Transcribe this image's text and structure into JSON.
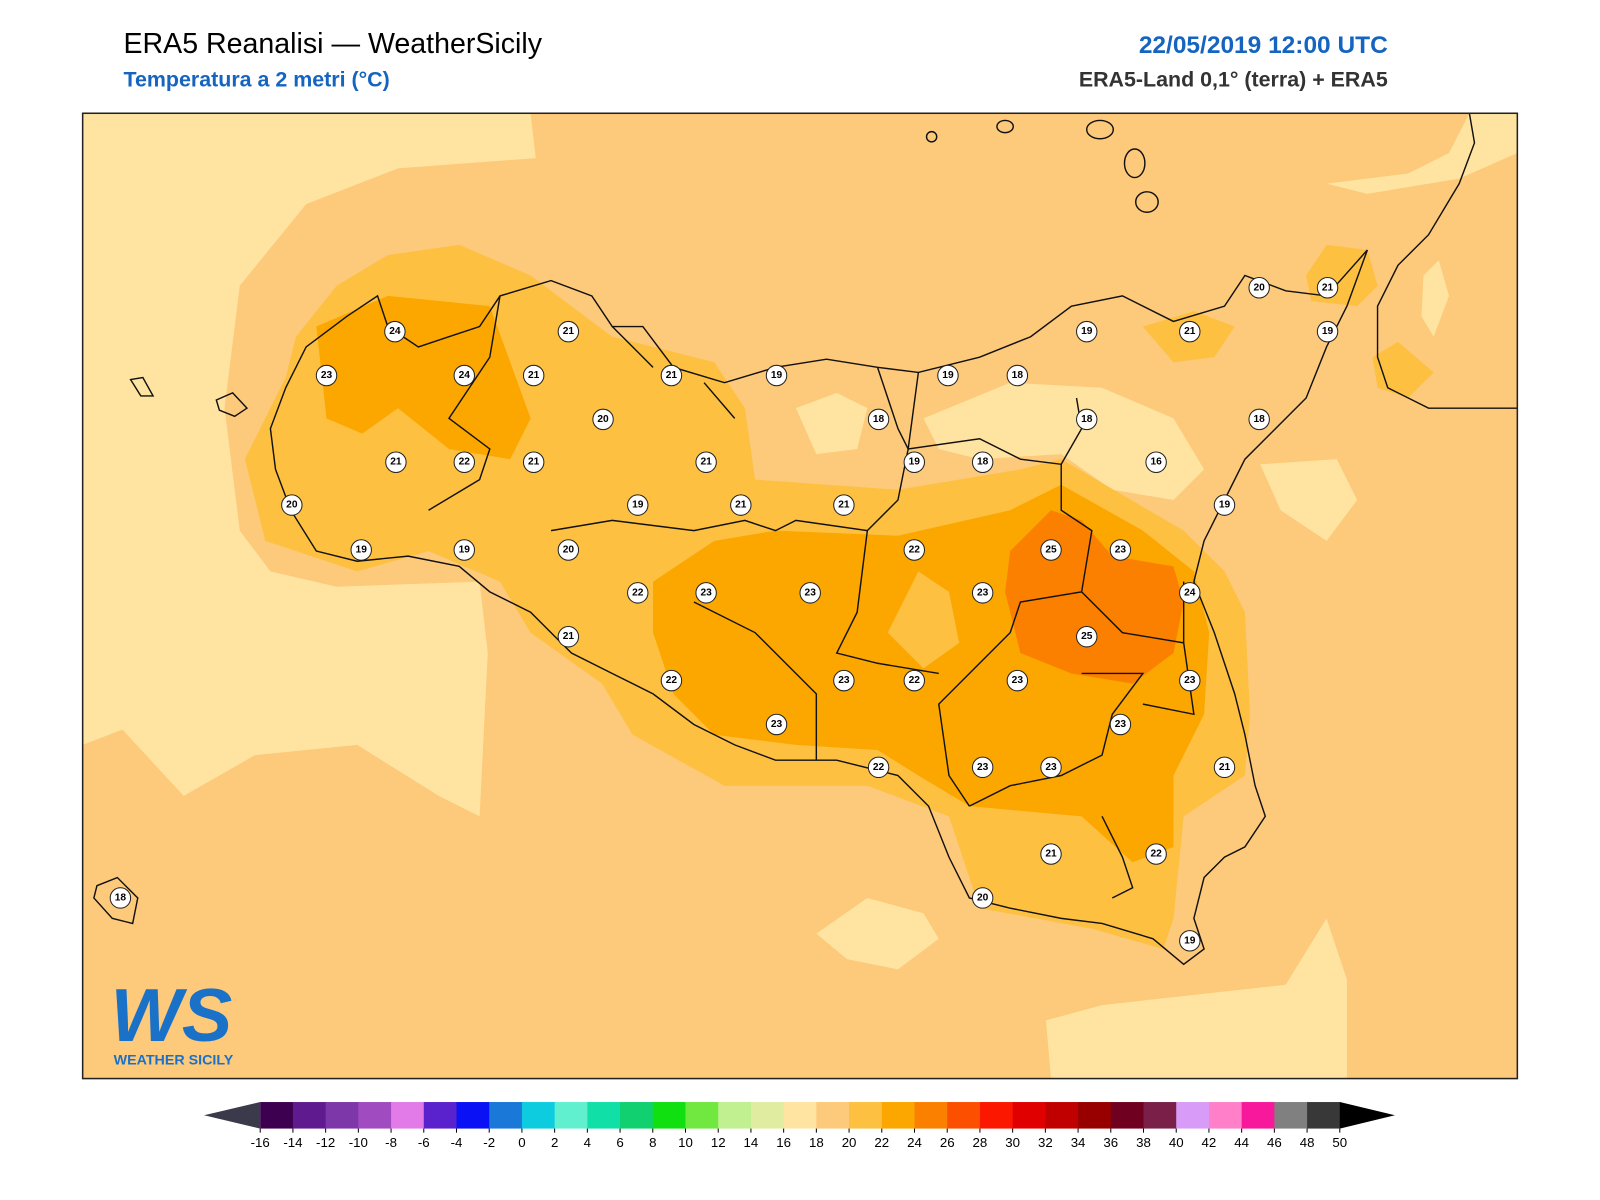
{
  "header": {
    "title": "ERA5 Reanalisi — WeatherSicily",
    "subtitle": "Temperatura a 2 metri (°C)",
    "date": "22/05/2019 12:00 UTC",
    "source": "ERA5-Land 0,1° (terra) + ERA5"
  },
  "stations": [
    24,
    23,
    24,
    21,
    21,
    20,
    21,
    21,
    22,
    21,
    21,
    20,
    19,
    19,
    20,
    19,
    21,
    21,
    19,
    18,
    19,
    18,
    19,
    18,
    19,
    18,
    16,
    21,
    20,
    21,
    19,
    18,
    19,
    22,
    25,
    23,
    22,
    23,
    23,
    23,
    24,
    21,
    25,
    22,
    23,
    22,
    23,
    23,
    23,
    23,
    22,
    23,
    23,
    21,
    21,
    22,
    20,
    19,
    18
  ],
  "colorbar": {
    "ticks": [
      -16,
      -14,
      -12,
      -10,
      -8,
      -6,
      -4,
      -2,
      0,
      2,
      4,
      6,
      8,
      10,
      12,
      14,
      16,
      18,
      20,
      22,
      24,
      26,
      28,
      30,
      32,
      34,
      36,
      38,
      40,
      42,
      44,
      46,
      48,
      50
    ],
    "colors": [
      "#3d0050",
      "#5e1a8e",
      "#7d37a8",
      "#a04cc0",
      "#e27ae8",
      "#5a22cc",
      "#0a12f5",
      "#1a78d8",
      "#0ecce0",
      "#60f0d0",
      "#10e0a8",
      "#10d070",
      "#10e010",
      "#70e840",
      "#c0f090",
      "#e0eca0",
      "#fee4a0",
      "#fdc97a",
      "#fdc040",
      "#fca600",
      "#fc8000",
      "#fc5000",
      "#fc1800",
      "#e00000",
      "#c00000",
      "#980000",
      "#700020",
      "#7a2048",
      "#d89cf8",
      "#ff80c8",
      "#f8189c",
      "#808080",
      "#383838"
    ],
    "under_color": "#3a3a4a",
    "over_color": "#000000"
  },
  "logo": {
    "text": "WS",
    "subtext": "WEATHER SICILY"
  }
}
